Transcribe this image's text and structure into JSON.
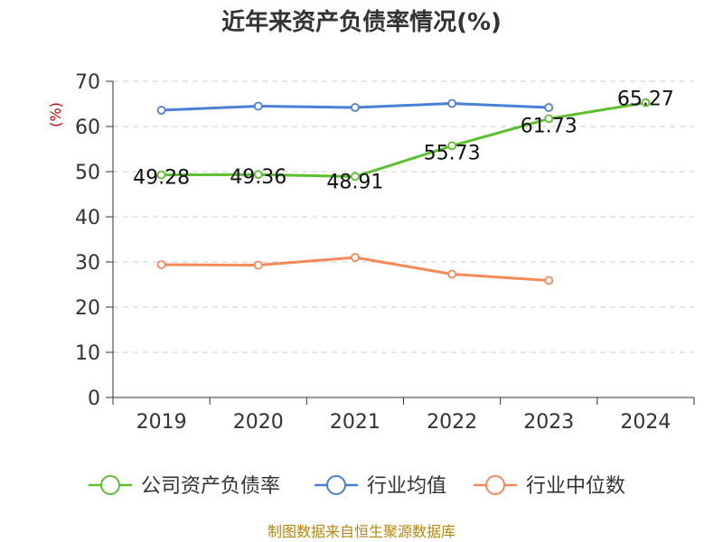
{
  "chart_data": {
    "type": "line",
    "title": "近年来资产负债率情况(%)",
    "ylabel": "(%)",
    "xlabel": "",
    "categories": [
      "2019",
      "2020",
      "2021",
      "2022",
      "2023",
      "2024"
    ],
    "ylim": [
      0,
      70
    ],
    "yticks": [
      0,
      10,
      20,
      30,
      40,
      50,
      60,
      70
    ],
    "grid": true,
    "legend_position": "bottom",
    "series": [
      {
        "name": "公司资产负债率",
        "color": "#5cc02e",
        "values": [
          49.28,
          49.36,
          48.91,
          55.73,
          61.73,
          65.27
        ],
        "labels": [
          "49.28",
          "49.36",
          "48.91",
          "55.73",
          "61.73",
          "65.27"
        ]
      },
      {
        "name": "行业均值",
        "color": "#4a7fd6",
        "values": [
          63.6,
          64.5,
          64.2,
          65.1,
          64.2,
          null
        ]
      },
      {
        "name": "行业中位数",
        "color": "#f5895a",
        "values": [
          29.4,
          29.3,
          31.0,
          27.3,
          25.9,
          null
        ]
      }
    ],
    "source": "制图数据来自恒生聚源数据库"
  }
}
